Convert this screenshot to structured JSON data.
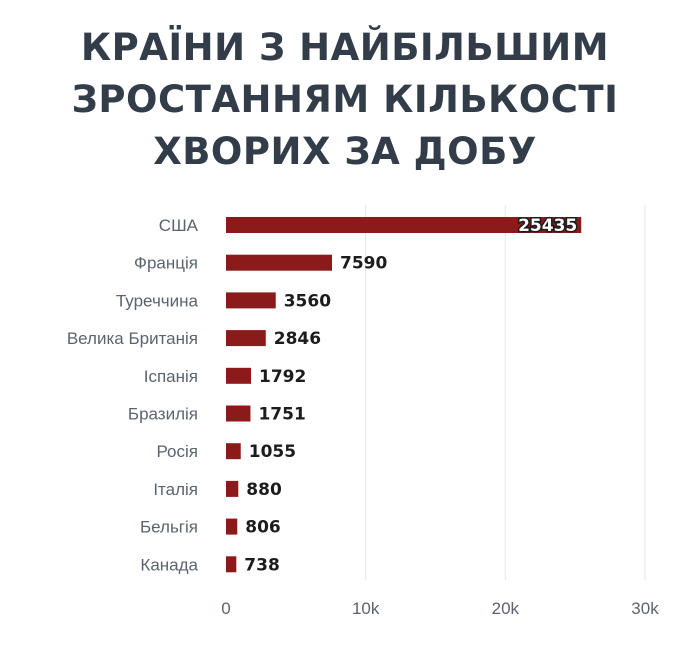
{
  "chart_data": {
    "type": "bar",
    "orientation": "horizontal",
    "title_lines": [
      "КРАЇНИ З НАЙБІЛЬШИМ",
      "ЗРОСТАННЯМ КІЛЬКОСТІ",
      "ХВОРИХ ЗА ДОБУ"
    ],
    "categories": [
      "США",
      "Франція",
      "Туреччина",
      "Велика Британія",
      "Іспанія",
      "Бразилія",
      "Росія",
      "Італія",
      "Бельгія",
      "Канада"
    ],
    "values": [
      25435,
      7590,
      3560,
      2846,
      1792,
      1751,
      1055,
      880,
      806,
      738
    ],
    "value_labels": [
      "25435",
      "7590",
      "3560",
      "2846",
      "1792",
      "1751",
      "1055",
      "880",
      "806",
      "738"
    ],
    "xlim": [
      0,
      30000
    ],
    "x_ticks": [
      0,
      10000,
      20000,
      30000
    ],
    "x_tick_labels": [
      "0",
      "10k",
      "20k",
      "30k"
    ],
    "grid": "vertical",
    "bar_color": "#8b1a1a",
    "legend": "none"
  }
}
